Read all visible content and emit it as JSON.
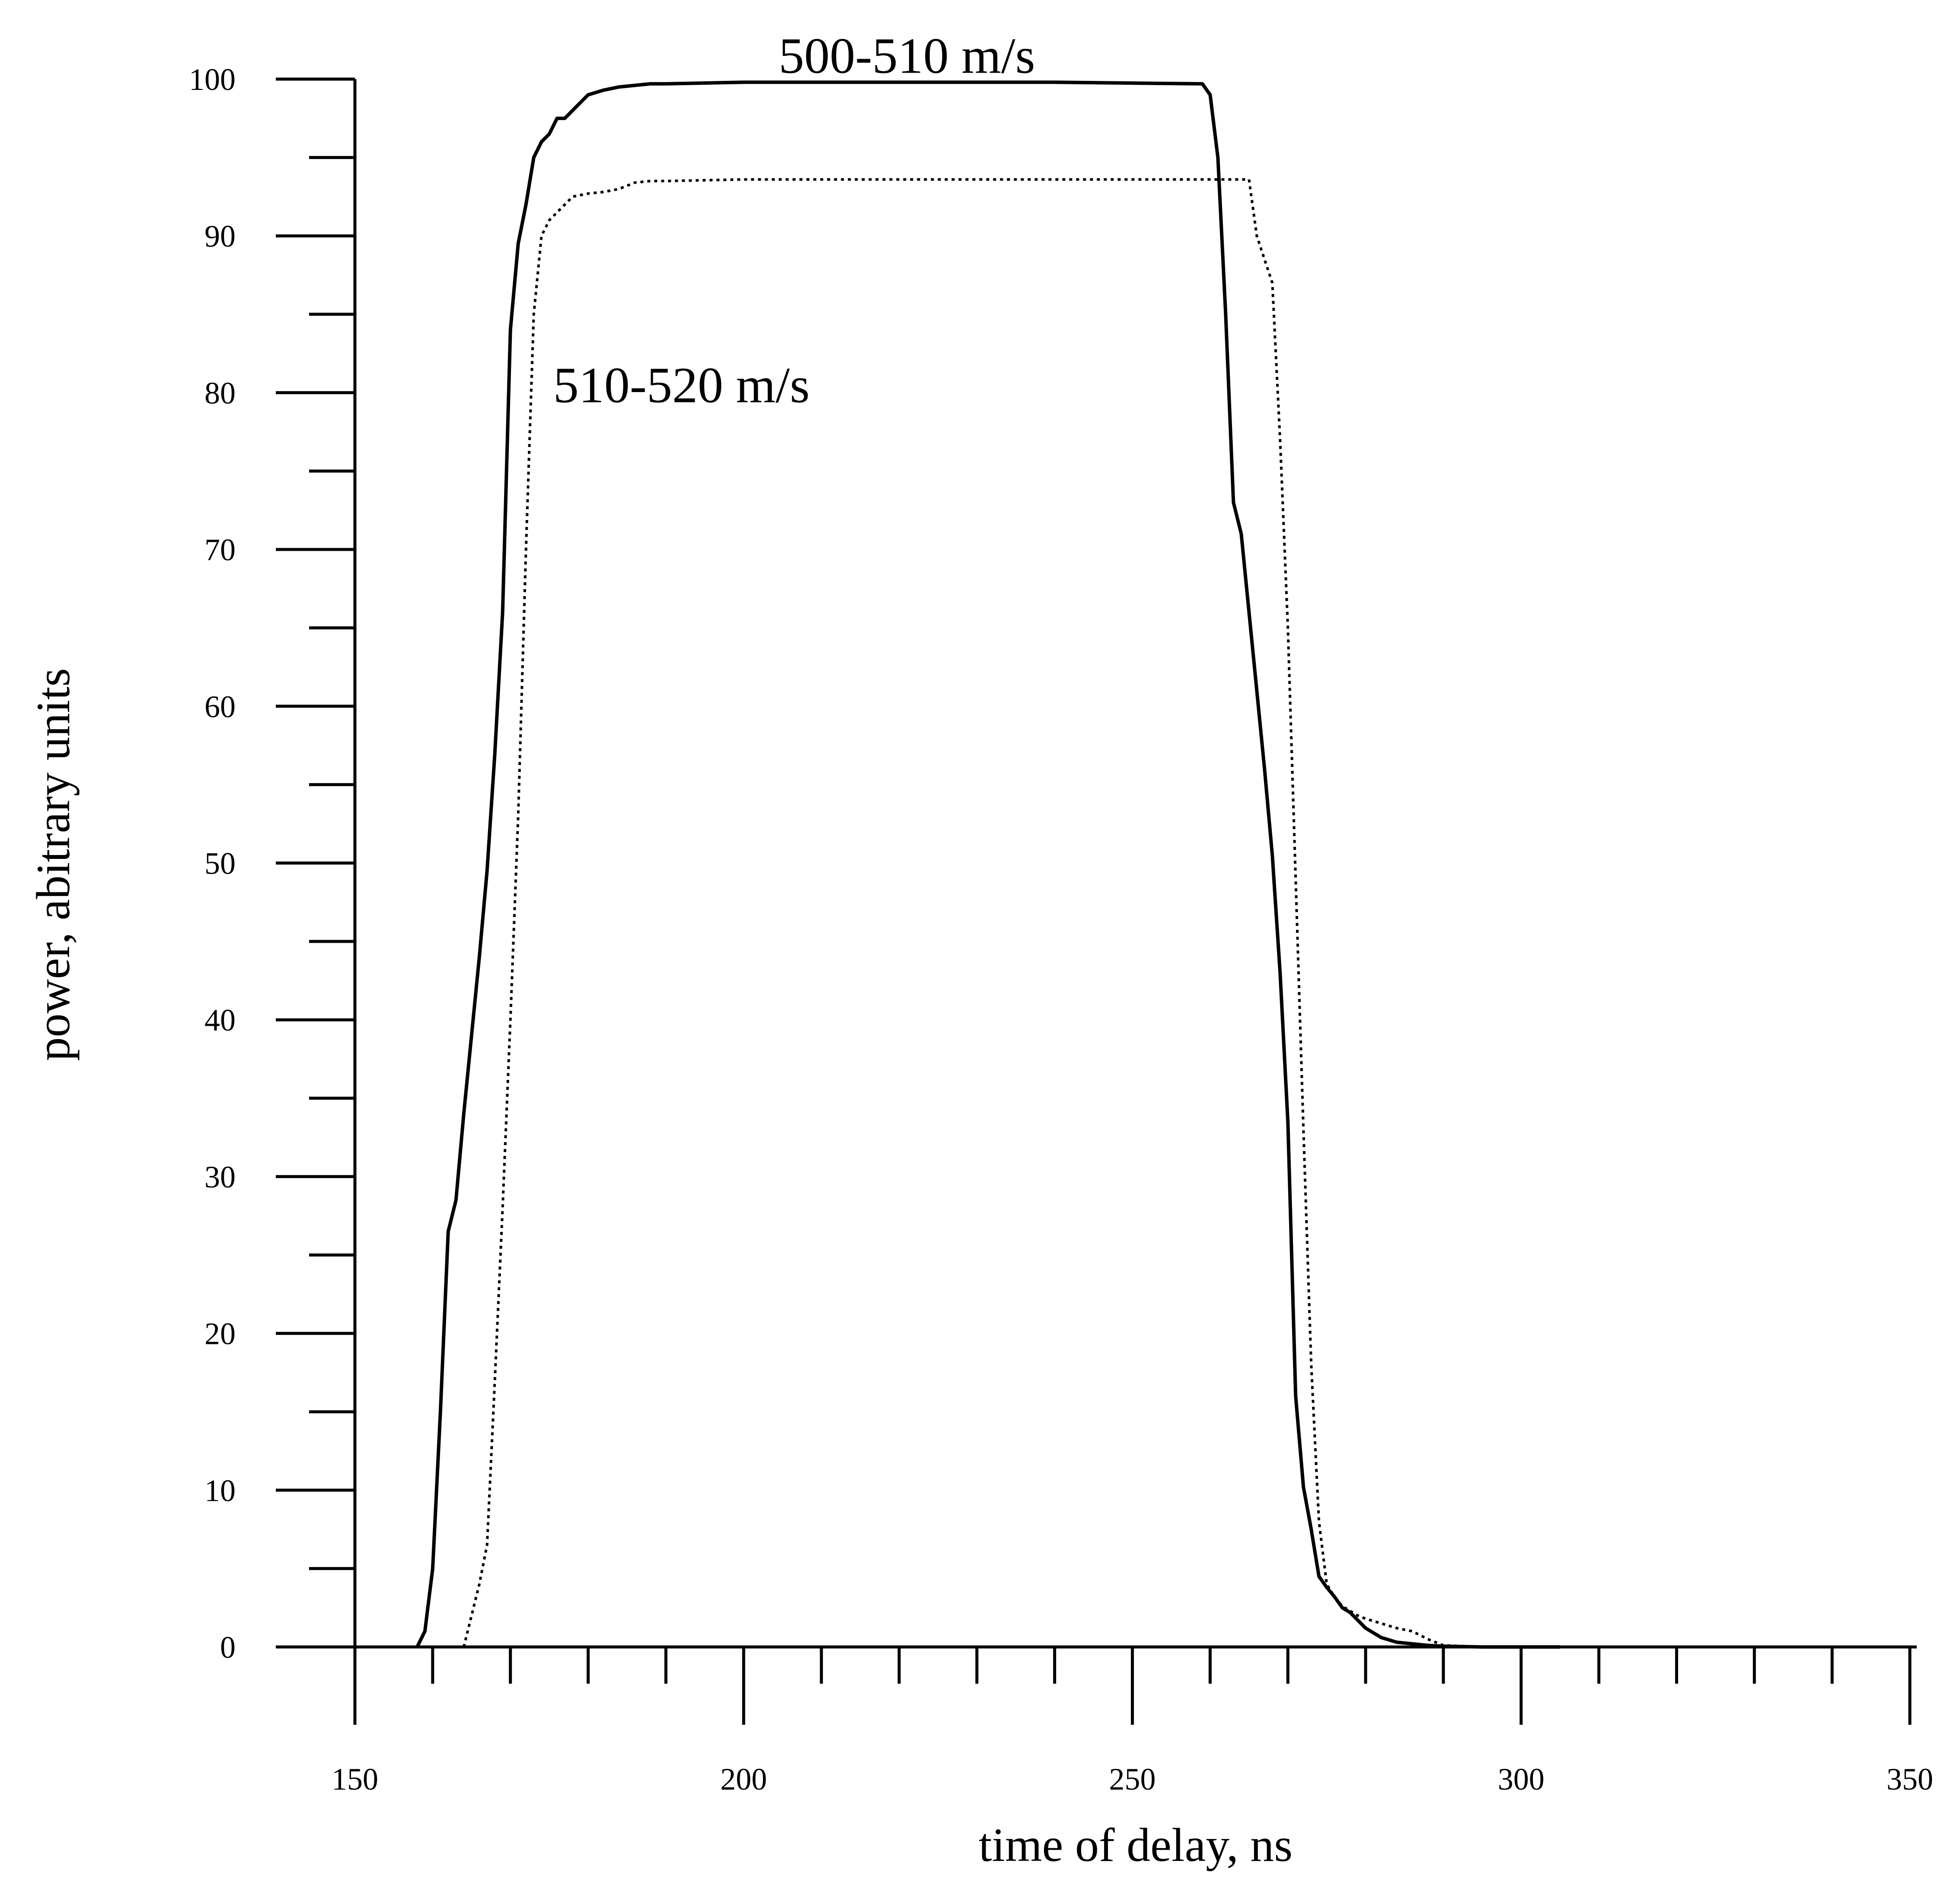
{
  "chart_data": {
    "type": "line",
    "title": "",
    "xlabel": "time of delay, ns",
    "ylabel": "power, abitrary units",
    "xlim": [
      150,
      350
    ],
    "ylim": [
      0,
      100
    ],
    "x_ticks": [
      150,
      200,
      250,
      300,
      350
    ],
    "x_tick_labels": [
      "150",
      "200",
      "250",
      "300",
      "350"
    ],
    "x_minor_step": 10,
    "y_ticks": [
      0,
      10,
      20,
      30,
      40,
      50,
      60,
      70,
      80,
      90,
      100
    ],
    "y_tick_labels": [
      "0",
      "10",
      "20",
      "30",
      "40",
      "50",
      "60",
      "70",
      "80",
      "90",
      "100"
    ],
    "y_minor_step": 5,
    "grid": false,
    "legend": "none",
    "annotations": [
      {
        "text": "500-510 m/s",
        "x": 221,
        "y": 101.5
      },
      {
        "text": "510-520 m/s",
        "x": 192,
        "y": 80.5
      }
    ],
    "series": [
      {
        "style": "solid",
        "color": "#000000",
        "x": [
          158,
          159,
          160,
          161,
          162,
          163,
          164,
          165,
          166,
          167,
          168,
          169,
          170,
          171,
          172,
          173,
          174,
          175,
          176,
          177,
          178,
          180,
          182,
          184,
          186,
          188,
          190,
          200,
          220,
          240,
          259,
          260,
          261,
          262,
          263,
          264,
          265,
          266,
          267,
          268,
          269,
          270,
          271,
          272,
          273,
          274,
          275,
          276,
          277,
          278,
          280,
          282,
          284,
          286,
          288,
          290,
          295,
          300,
          305
        ],
        "y": [
          0,
          1,
          5,
          15,
          26.5,
          28.5,
          34,
          39,
          44,
          49.5,
          57,
          66,
          84,
          89.5,
          92,
          95,
          96,
          96.5,
          97.5,
          97.5,
          98,
          99,
          99.3,
          99.5,
          99.6,
          99.7,
          99.7,
          99.8,
          99.8,
          99.8,
          99.7,
          99,
          95,
          85,
          73,
          71,
          66,
          61,
          56,
          50.5,
          43,
          33.5,
          16,
          10.2,
          7.5,
          4.5,
          3.8,
          3.2,
          2.5,
          2.2,
          1.2,
          0.6,
          0.3,
          0.2,
          0.1,
          0.05,
          0,
          0,
          0
        ]
      },
      {
        "style": "dotted",
        "color": "#000000",
        "x": [
          164,
          165,
          166,
          167,
          168,
          169,
          170,
          171,
          172,
          173,
          174,
          175,
          176,
          177,
          178,
          180,
          182,
          184,
          186,
          188,
          190,
          200,
          220,
          240,
          265,
          266,
          267,
          268,
          269,
          270,
          271,
          272,
          273,
          274,
          275,
          276,
          277,
          278,
          279,
          280,
          282,
          284,
          286,
          288,
          290,
          295,
          300,
          305
        ],
        "y": [
          0,
          2,
          4,
          6.5,
          17,
          28,
          40,
          53,
          70,
          85,
          90,
          91,
          91.5,
          92,
          92.5,
          92.7,
          92.8,
          93,
          93.4,
          93.5,
          93.5,
          93.6,
          93.6,
          93.6,
          93.6,
          90,
          88.5,
          87,
          77,
          65,
          49,
          33,
          18,
          8,
          4,
          3.2,
          2.6,
          2.3,
          2,
          1.8,
          1.5,
          1.2,
          1.0,
          0.5,
          0.1,
          0,
          0,
          0
        ]
      }
    ]
  }
}
